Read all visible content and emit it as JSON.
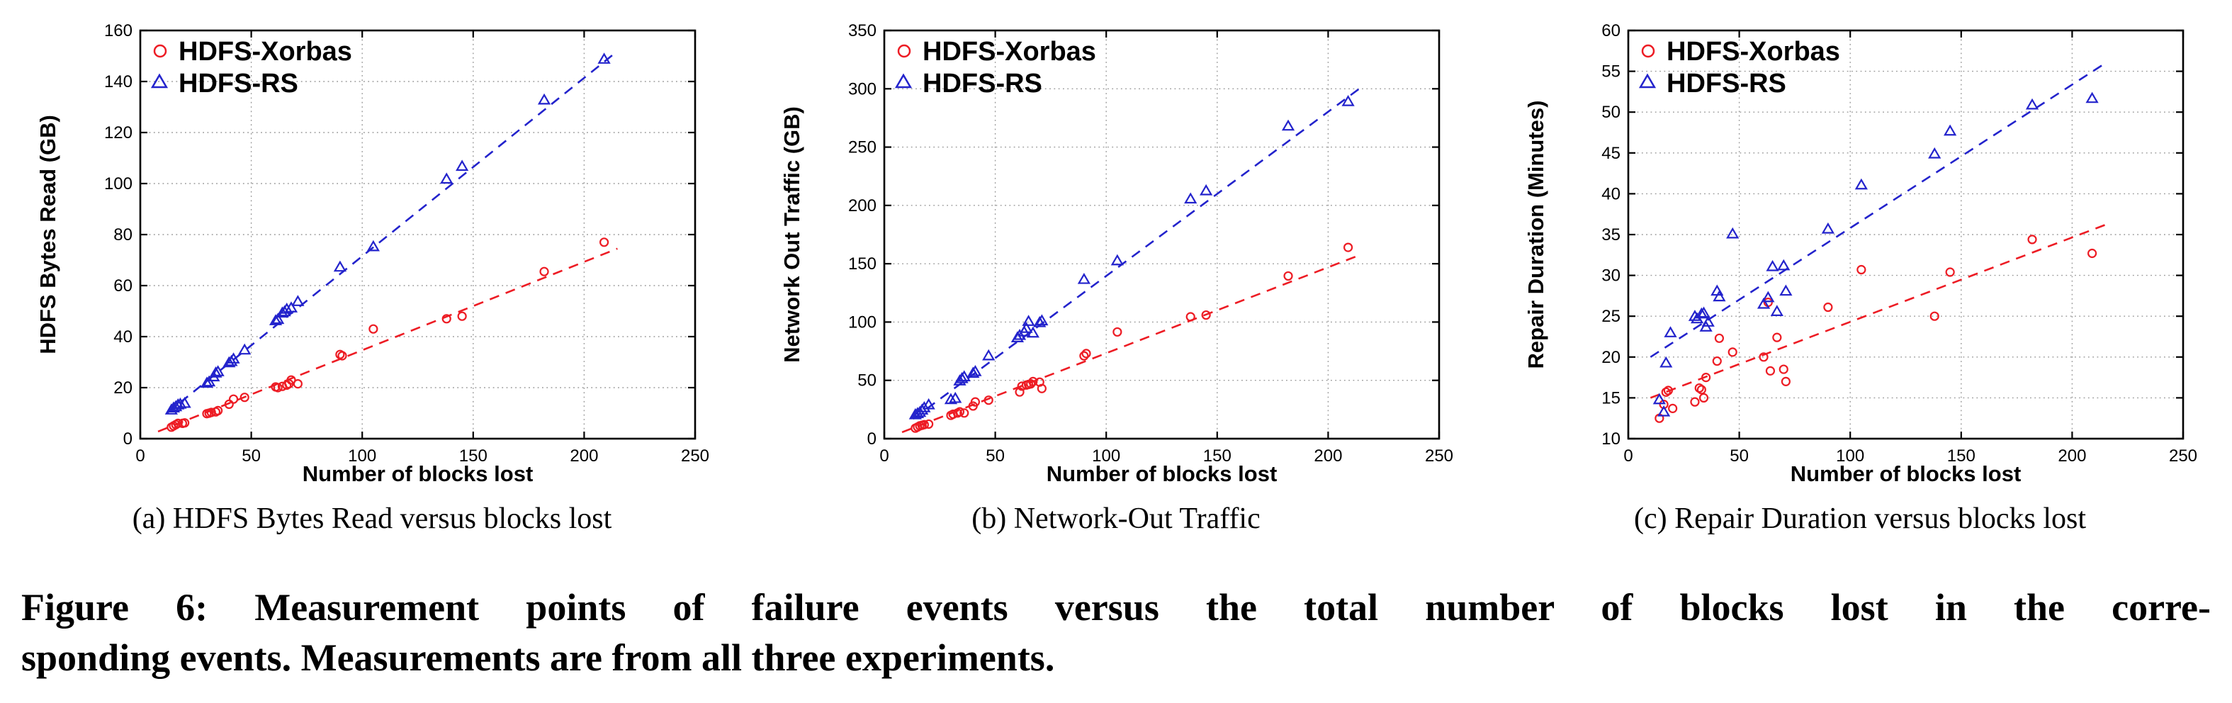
{
  "figure": {
    "subcaptions": [
      "(a) HDFS Bytes Read versus blocks lost",
      "(b) Network-Out Traffic",
      "(c) Repair Duration versus blocks lost"
    ],
    "caption_lines": [
      "Figure 6: Measurement points of failure events versus the total number of blocks lost in the corre-",
      "sponding events. Measurements are from all three experiments."
    ]
  },
  "colors": {
    "xorbas": "#ed1c24",
    "rs": "#2323cc",
    "grid": "#999999",
    "axis": "#000000"
  },
  "chart_data": [
    {
      "type": "scatter",
      "xlabel": "Number of blocks lost",
      "ylabel": "HDFS Bytes Read (GB)",
      "xlim": [
        0,
        250
      ],
      "ylim": [
        0,
        160
      ],
      "xticks": [
        0,
        50,
        100,
        150,
        200,
        250
      ],
      "yticks": [
        0,
        20,
        40,
        60,
        80,
        100,
        120,
        140,
        160
      ],
      "grid": true,
      "legend_position": "top-left",
      "series": [
        {
          "name": "HDFS-Xorbas",
          "marker": "circle",
          "color": "#ed1c24",
          "points": [
            [
              14,
              4.5
            ],
            [
              15,
              5
            ],
            [
              16,
              5.5
            ],
            [
              17,
              6
            ],
            [
              19,
              6
            ],
            [
              20,
              6.2
            ],
            [
              30,
              9.8
            ],
            [
              31,
              10
            ],
            [
              32,
              10.3
            ],
            [
              34,
              10.5
            ],
            [
              35,
              11
            ],
            [
              40,
              13.5
            ],
            [
              42,
              15.5
            ],
            [
              47,
              16.2
            ],
            [
              61,
              20.3
            ],
            [
              62,
              20
            ],
            [
              64,
              20.5
            ],
            [
              66,
              21
            ],
            [
              67,
              21.5
            ],
            [
              68,
              23
            ],
            [
              71,
              21.5
            ],
            [
              90,
              33
            ],
            [
              91,
              32.5
            ],
            [
              105,
              43
            ],
            [
              138,
              47
            ],
            [
              145,
              48
            ],
            [
              182,
              65.5
            ],
            [
              209,
              77
            ]
          ],
          "trend": {
            "x1": 8,
            "y1": 2.8,
            "x2": 215,
            "y2": 74.5
          }
        },
        {
          "name": "HDFS-RS",
          "marker": "triangle",
          "color": "#2323cc",
          "points": [
            [
              14,
              11
            ],
            [
              15,
              11.8
            ],
            [
              16,
              12.3
            ],
            [
              17,
              13
            ],
            [
              18,
              13.3
            ],
            [
              20,
              13.6
            ],
            [
              30,
              21.5
            ],
            [
              31,
              22
            ],
            [
              33,
              24
            ],
            [
              34,
              25.5
            ],
            [
              35,
              26
            ],
            [
              40,
              29.5
            ],
            [
              41,
              30
            ],
            [
              42,
              31
            ],
            [
              47,
              34.5
            ],
            [
              61,
              46
            ],
            [
              62,
              46.5
            ],
            [
              64,
              49
            ],
            [
              65,
              49.5
            ],
            [
              66,
              50.5
            ],
            [
              68,
              51
            ],
            [
              71,
              53.5
            ],
            [
              90,
              67
            ],
            [
              105,
              75
            ],
            [
              138,
              101.5
            ],
            [
              145,
              106.5
            ],
            [
              182,
              132.5
            ],
            [
              209,
              148.5
            ]
          ],
          "trend": {
            "x1": 12,
            "y1": 10,
            "x2": 213,
            "y2": 150.5
          }
        }
      ]
    },
    {
      "type": "scatter",
      "xlabel": "Number of blocks lost",
      "ylabel": "Network Out Traffic (GB)",
      "xlim": [
        0,
        250
      ],
      "ylim": [
        0,
        350
      ],
      "xticks": [
        0,
        50,
        100,
        150,
        200,
        250
      ],
      "yticks": [
        0,
        50,
        100,
        150,
        200,
        250,
        300,
        350
      ],
      "grid": true,
      "legend_position": "top-left",
      "series": [
        {
          "name": "HDFS-Xorbas",
          "marker": "circle",
          "color": "#ed1c24",
          "points": [
            [
              14,
              9
            ],
            [
              15,
              10
            ],
            [
              16,
              11
            ],
            [
              17,
              11.5
            ],
            [
              18,
              12
            ],
            [
              20,
              12.5
            ],
            [
              30,
              20
            ],
            [
              31,
              21
            ],
            [
              33,
              22
            ],
            [
              34,
              23
            ],
            [
              36,
              22
            ],
            [
              40,
              28
            ],
            [
              41,
              31.5
            ],
            [
              47,
              33
            ],
            [
              61,
              40
            ],
            [
              62,
              45
            ],
            [
              64,
              46
            ],
            [
              65,
              46.5
            ],
            [
              66,
              47
            ],
            [
              67,
              49
            ],
            [
              70,
              48.5
            ],
            [
              71,
              43
            ],
            [
              90,
              71
            ],
            [
              91,
              73
            ],
            [
              105,
              91.5
            ],
            [
              138,
              104.5
            ],
            [
              145,
              106
            ],
            [
              182,
              139.5
            ],
            [
              209,
              164
            ]
          ],
          "trend": {
            "x1": 8,
            "y1": 5.5,
            "x2": 215,
            "y2": 158
          }
        },
        {
          "name": "HDFS-RS",
          "marker": "triangle",
          "color": "#2323cc",
          "points": [
            [
              14,
              20
            ],
            [
              15,
              21
            ],
            [
              16,
              22
            ],
            [
              17,
              24
            ],
            [
              18,
              26
            ],
            [
              20,
              28.5
            ],
            [
              30,
              33
            ],
            [
              32,
              34
            ],
            [
              34,
              49
            ],
            [
              35,
              51
            ],
            [
              36,
              52.5
            ],
            [
              40,
              55.5
            ],
            [
              41,
              57
            ],
            [
              47,
              70.5
            ],
            [
              60,
              86
            ],
            [
              61,
              88
            ],
            [
              63,
              91
            ],
            [
              64,
              94
            ],
            [
              65,
              100
            ],
            [
              67,
              90
            ],
            [
              70,
              99
            ],
            [
              71,
              100.5
            ],
            [
              90,
              136
            ],
            [
              105,
              152
            ],
            [
              138,
              205
            ],
            [
              145,
              212
            ],
            [
              182,
              267.5
            ],
            [
              209,
              288.5
            ]
          ],
          "trend": {
            "x1": 13,
            "y1": 17,
            "x2": 214,
            "y2": 300
          }
        }
      ]
    },
    {
      "type": "scatter",
      "xlabel": "Number of blocks lost",
      "ylabel": "Repair Duration (Minutes)",
      "xlim": [
        0,
        250
      ],
      "ylim": [
        10,
        60
      ],
      "xticks": [
        0,
        50,
        100,
        150,
        200,
        250
      ],
      "yticks": [
        10,
        15,
        20,
        25,
        30,
        35,
        40,
        45,
        50,
        55,
        60
      ],
      "grid": true,
      "legend_position": "top-left",
      "series": [
        {
          "name": "HDFS-Xorbas",
          "marker": "circle",
          "color": "#ed1c24",
          "points": [
            [
              14,
              12.5
            ],
            [
              16,
              14.2
            ],
            [
              17,
              15.7
            ],
            [
              18,
              15.9
            ],
            [
              20,
              13.7
            ],
            [
              30,
              14.5
            ],
            [
              32,
              16.2
            ],
            [
              33,
              16
            ],
            [
              34,
              15
            ],
            [
              35,
              17.5
            ],
            [
              40,
              19.5
            ],
            [
              41,
              22.3
            ],
            [
              47,
              20.6
            ],
            [
              61,
              20
            ],
            [
              63,
              26.7
            ],
            [
              64,
              18.3
            ],
            [
              67,
              22.4
            ],
            [
              70,
              18.5
            ],
            [
              71,
              17
            ],
            [
              90,
              26.1
            ],
            [
              105,
              30.7
            ],
            [
              138,
              25
            ],
            [
              145,
              30.4
            ],
            [
              182,
              34.4
            ],
            [
              209,
              32.7
            ]
          ],
          "trend": {
            "x1": 10,
            "y1": 15,
            "x2": 215,
            "y2": 36.2
          }
        },
        {
          "name": "HDFS-RS",
          "marker": "triangle",
          "color": "#2323cc",
          "points": [
            [
              14,
              14.7
            ],
            [
              16,
              13.2
            ],
            [
              17,
              19.2
            ],
            [
              19,
              22.9
            ],
            [
              30,
              24.9
            ],
            [
              31,
              24.6
            ],
            [
              33,
              25.2
            ],
            [
              34,
              25.3
            ],
            [
              35,
              23.6
            ],
            [
              36,
              24.2
            ],
            [
              40,
              28
            ],
            [
              41,
              27.3
            ],
            [
              47,
              35
            ],
            [
              61,
              26.4
            ],
            [
              63,
              27.2
            ],
            [
              65,
              31
            ],
            [
              67,
              25.5
            ],
            [
              70,
              31.1
            ],
            [
              71,
              28
            ],
            [
              90,
              35.6
            ],
            [
              105,
              41
            ],
            [
              138,
              44.8
            ],
            [
              145,
              47.6
            ],
            [
              182,
              50.8
            ],
            [
              209,
              51.6
            ]
          ],
          "trend": {
            "x1": 10,
            "y1": 20,
            "x2": 215,
            "y2": 56
          }
        }
      ]
    }
  ]
}
